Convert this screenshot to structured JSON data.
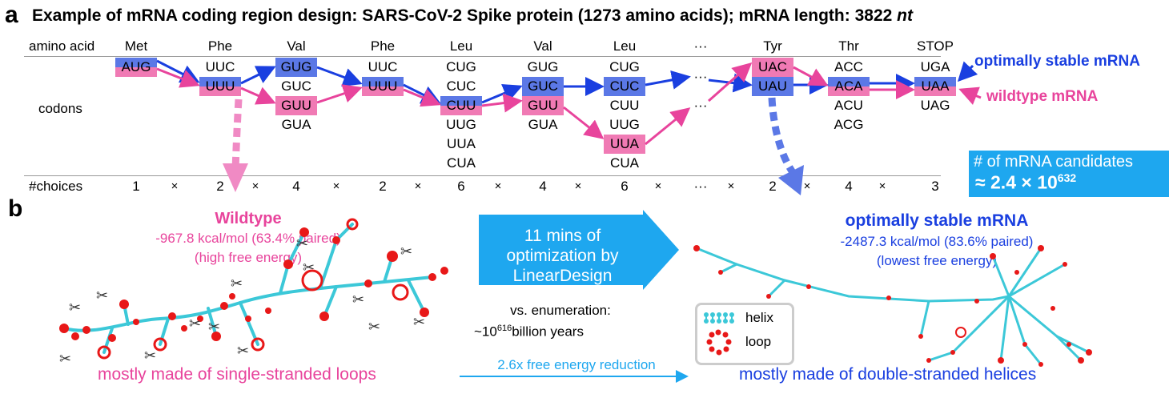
{
  "panel_a": {
    "letter": "a",
    "title_main": "Example of mRNA coding region design: SARS-CoV-2 Spike protein (1273 amino acids); mRNA length: 3822 ",
    "title_unit": "nt",
    "row_amino": "amino acid",
    "row_codons": "codons",
    "row_choices": "#choices",
    "columns": [
      {
        "aa": "Met",
        "codons": [
          "AUG"
        ],
        "choices": "1"
      },
      {
        "aa": "Phe",
        "codons": [
          "UUC",
          "UUU"
        ],
        "choices": "2"
      },
      {
        "aa": "Val",
        "codons": [
          "GUG",
          "GUC",
          "GUU",
          "GUA"
        ],
        "choices": "4"
      },
      {
        "aa": "Phe",
        "codons": [
          "UUC",
          "UUU"
        ],
        "choices": "2"
      },
      {
        "aa": "Leu",
        "codons": [
          "CUG",
          "CUC",
          "CUU",
          "UUG",
          "UUA",
          "CUA"
        ],
        "choices": "6"
      },
      {
        "aa": "Val",
        "codons": [
          "GUG",
          "GUC",
          "GUU",
          "GUA"
        ],
        "choices": "4"
      },
      {
        "aa": "Leu",
        "codons": [
          "CUG",
          "CUC",
          "CUU",
          "UUG",
          "UUA",
          "CUA"
        ],
        "choices": "6"
      },
      {
        "aa": "···",
        "codons": [
          "···",
          "···"
        ],
        "choices": "···"
      },
      {
        "aa": "Tyr",
        "codons": [
          "UAC",
          "UAU"
        ],
        "choices": "2"
      },
      {
        "aa": "Thr",
        "codons": [
          "ACC",
          "ACA",
          "ACU",
          "ACG"
        ],
        "choices": "4"
      },
      {
        "aa": "STOP",
        "codons": [
          "UGA",
          "UAA",
          "UAG"
        ],
        "choices": "3"
      }
    ],
    "times": "×",
    "legend_stable": "optimally stable mRNA",
    "legend_wildtype": "wildtype mRNA",
    "candidates_label": "# of mRNA candidates",
    "candidates_approx": "≈ 2.4 × 10",
    "candidates_exp": "632"
  },
  "panel_b": {
    "letter": "b",
    "wildtype_title": "Wildtype",
    "wildtype_energy": "-967.8 kcal/mol (63.4% paired)",
    "wildtype_note": "(high free energy)",
    "wildtype_caption": "mostly made of single-stranded loops",
    "arrow_text": [
      "11 mins of",
      "optimization by",
      "LinearDesign"
    ],
    "enum_label": "vs. enumeration:",
    "enum_prefix": "~10",
    "enum_exp": "616",
    "enum_suffix": "billion years",
    "reduction": "2.6x free energy reduction",
    "stable_title": "optimally stable mRNA",
    "stable_energy": "-2487.3 kcal/mol (83.6% paired)",
    "stable_note": "(lowest free energy)",
    "stable_caption": "mostly made of double-stranded helices",
    "legend_helix": "helix",
    "legend_loop": "loop"
  },
  "colors": {
    "blue": "#1a3fe0",
    "pink": "#e8449c",
    "cyan": "#1ea7ef",
    "helix": "#3cc8d8",
    "loop": "#e81818"
  }
}
